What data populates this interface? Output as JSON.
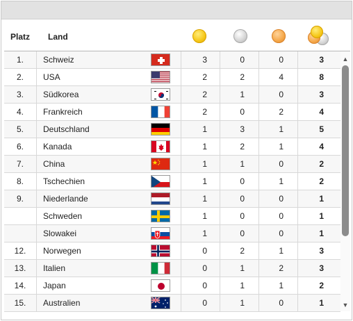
{
  "header": {
    "platz": "Platz",
    "land": "Land",
    "gold_icon": "gold-medal-icon",
    "silver_icon": "silver-medal-icon",
    "bronze_icon": "bronze-medal-icon",
    "total_icon": "all-medals-icon"
  },
  "rows": [
    {
      "rank": "1.",
      "country": "Schweiz",
      "flag": "ch",
      "gold": "3",
      "silver": "0",
      "bronze": "0",
      "total": "3"
    },
    {
      "rank": "2.",
      "country": "USA",
      "flag": "us",
      "gold": "2",
      "silver": "2",
      "bronze": "4",
      "total": "8"
    },
    {
      "rank": "3.",
      "country": "Südkorea",
      "flag": "kr",
      "gold": "2",
      "silver": "1",
      "bronze": "0",
      "total": "3"
    },
    {
      "rank": "4.",
      "country": "Frankreich",
      "flag": "fr",
      "gold": "2",
      "silver": "0",
      "bronze": "2",
      "total": "4"
    },
    {
      "rank": "5.",
      "country": "Deutschland",
      "flag": "de",
      "gold": "1",
      "silver": "3",
      "bronze": "1",
      "total": "5"
    },
    {
      "rank": "6.",
      "country": "Kanada",
      "flag": "ca",
      "gold": "1",
      "silver": "2",
      "bronze": "1",
      "total": "4"
    },
    {
      "rank": "7.",
      "country": "China",
      "flag": "cn",
      "gold": "1",
      "silver": "1",
      "bronze": "0",
      "total": "2"
    },
    {
      "rank": "8.",
      "country": "Tschechien",
      "flag": "cz",
      "gold": "1",
      "silver": "0",
      "bronze": "1",
      "total": "2"
    },
    {
      "rank": "9.",
      "country": "Niederlande",
      "flag": "nl",
      "gold": "1",
      "silver": "0",
      "bronze": "0",
      "total": "1"
    },
    {
      "rank": "",
      "country": "Schweden",
      "flag": "se",
      "gold": "1",
      "silver": "0",
      "bronze": "0",
      "total": "1"
    },
    {
      "rank": "",
      "country": "Slowakei",
      "flag": "sk",
      "gold": "1",
      "silver": "0",
      "bronze": "0",
      "total": "1"
    },
    {
      "rank": "12.",
      "country": "Norwegen",
      "flag": "no",
      "gold": "0",
      "silver": "2",
      "bronze": "1",
      "total": "3"
    },
    {
      "rank": "13.",
      "country": "Italien",
      "flag": "it",
      "gold": "0",
      "silver": "1",
      "bronze": "2",
      "total": "3"
    },
    {
      "rank": "14.",
      "country": "Japan",
      "flag": "jp",
      "gold": "0",
      "silver": "1",
      "bronze": "1",
      "total": "2"
    },
    {
      "rank": "15.",
      "country": "Australien",
      "flag": "au",
      "gold": "0",
      "silver": "1",
      "bronze": "0",
      "total": "1"
    }
  ],
  "scrollbar": {
    "up_icon": "scroll-up-arrow-icon",
    "down_icon": "scroll-down-arrow-icon"
  }
}
